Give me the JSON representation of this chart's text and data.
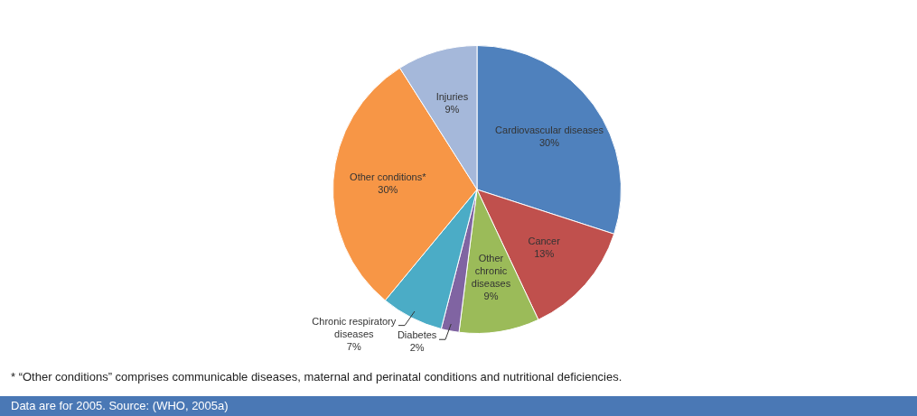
{
  "chart_data": {
    "type": "pie",
    "categories": [
      "Cardiovascular diseases",
      "Cancer",
      "Other chronic diseases",
      "Diabetes",
      "Chronic respiratory diseases",
      "Other conditions*",
      "Injuries"
    ],
    "values": [
      30,
      13,
      9,
      2,
      7,
      30,
      9
    ],
    "colors": [
      "#4f81bd",
      "#c0504d",
      "#9bbb59",
      "#8064a2",
      "#4bacc6",
      "#f79646",
      "#a5b8da"
    ],
    "value_labels": [
      "30%",
      "13%",
      "9%",
      "2%",
      "7%",
      "30%",
      "9%"
    ],
    "legend": false,
    "annotations": [
      "* “Other conditions” comprises communicable diseases, maternal and perinatal conditions and nutritional deficiencies.",
      "Data are for 2005. Source: (WHO, 2005a)"
    ]
  }
}
